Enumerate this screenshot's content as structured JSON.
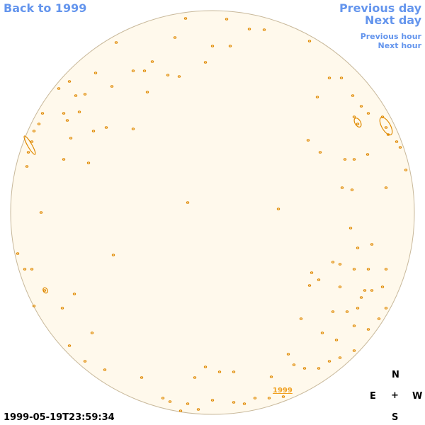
{
  "links": {
    "back": "Back to 1999",
    "previous_day": "Previous day",
    "next_day": "Next day",
    "previous_hour": "Previous hour",
    "next_hour": "Next hour"
  },
  "image_label": "1999",
  "timestamp": "1999-05-19T23:59:34",
  "compass": {
    "north": "N",
    "east": "E",
    "center": "+",
    "west": "W",
    "south": "S"
  }
}
